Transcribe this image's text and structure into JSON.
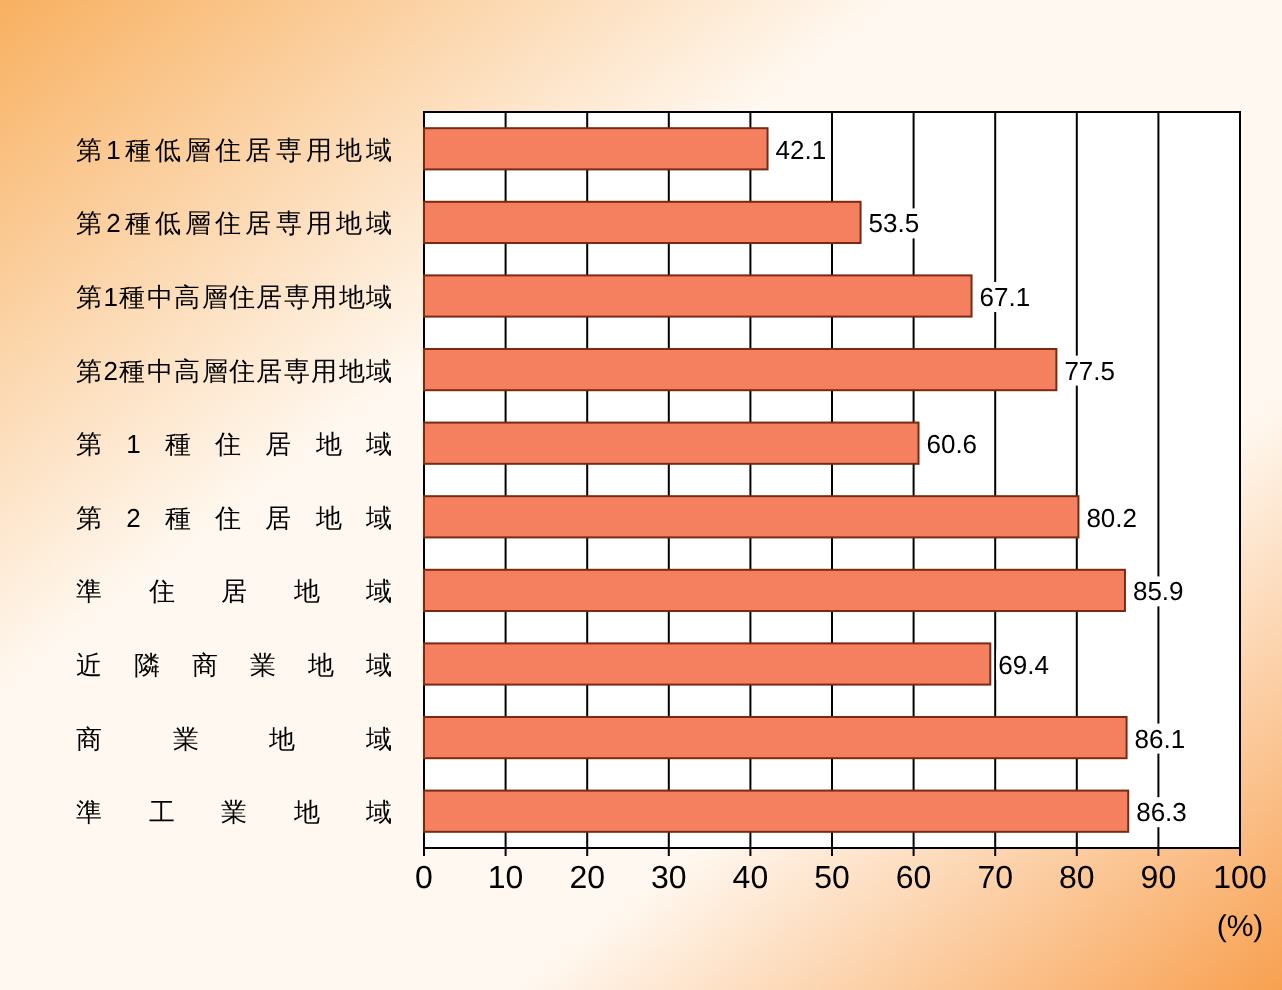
{
  "chart_data": {
    "type": "bar",
    "orientation": "horizontal",
    "xlabel": "(%)",
    "categories": [
      "第1種低層住居専用地域",
      "第2種低層住居専用地域",
      "第1種中高層住居専用地域",
      "第2種中高層住居専用地域",
      "第 1 種 住 居 地 域",
      "第 2 種 住 居 地 域",
      "準 住 居 地 域",
      "近 隣 商 業 地 域",
      "商 業 地 域",
      "準 工 業 地 域"
    ],
    "values": [
      42.1,
      53.5,
      67.1,
      77.5,
      60.6,
      80.2,
      85.9,
      69.4,
      86.1,
      86.3
    ],
    "color": "#f4805f",
    "xlim": [
      0,
      100
    ],
    "xticks": [
      0,
      10,
      20,
      30,
      40,
      50,
      60,
      70,
      80,
      90,
      100
    ],
    "grid": "x",
    "data_labels": true
  }
}
